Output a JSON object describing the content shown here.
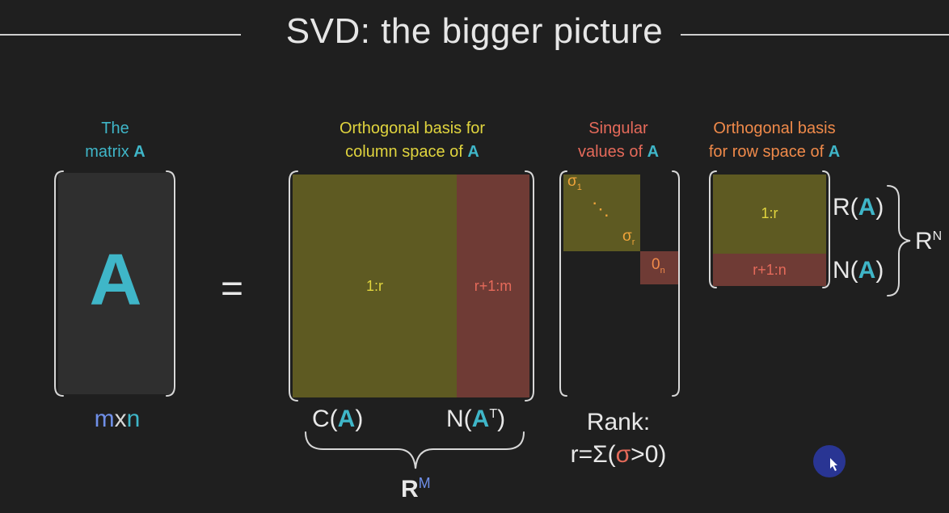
{
  "title": "SVD: the bigger picture",
  "headers": {
    "matrix_line1": "The",
    "matrix_line2": "matrix",
    "matrix_bold": "A",
    "u_line1": "Orthogonal basis for",
    "u_line2": "column space of",
    "u_bold": "A",
    "s_line1": "Singular",
    "s_line2": "values of",
    "s_bold": "A",
    "v_line1": "Orthogonal basis",
    "v_line2": "for row space of",
    "v_bold": "A"
  },
  "matrix": {
    "letter": "A",
    "dims_m": "m",
    "dims_x": "x",
    "dims_n": "n"
  },
  "equals": "=",
  "u": {
    "left_label": "1:r",
    "right_label": "r+1:m",
    "col_space": {
      "pre": "C(",
      "a": "A",
      "post": ")"
    },
    "null_space": {
      "pre": "N(",
      "a": "A",
      "sup": "T",
      "post": ")"
    },
    "space": {
      "base": "R",
      "sup": "M"
    }
  },
  "sigma": {
    "sigma1": "σ",
    "sigma1_sub": "1",
    "dots": "⋱",
    "sigmar": "σ",
    "sigmar_sub": "r",
    "zero": "0",
    "zero_sub": "n",
    "rank_line1": "Rank:",
    "rank_pre": "r=Σ(",
    "rank_sigma": "σ",
    "rank_post": ">0)"
  },
  "v": {
    "top_label": "1:r",
    "bottom_label": "r+1:n",
    "row_space": {
      "pre": "R(",
      "a": "A",
      "post": ")"
    },
    "null_space": {
      "pre": "N(",
      "a": "A",
      "post": ")"
    },
    "space": {
      "base": "R",
      "sup": "N"
    }
  },
  "colors": {
    "cyan": "#3fb6c8",
    "yellow": "#e0d43e",
    "salmon": "#e56a5a",
    "orange": "#f08a4a",
    "olive": "#5e5a22",
    "rust": "#6f3b35"
  }
}
